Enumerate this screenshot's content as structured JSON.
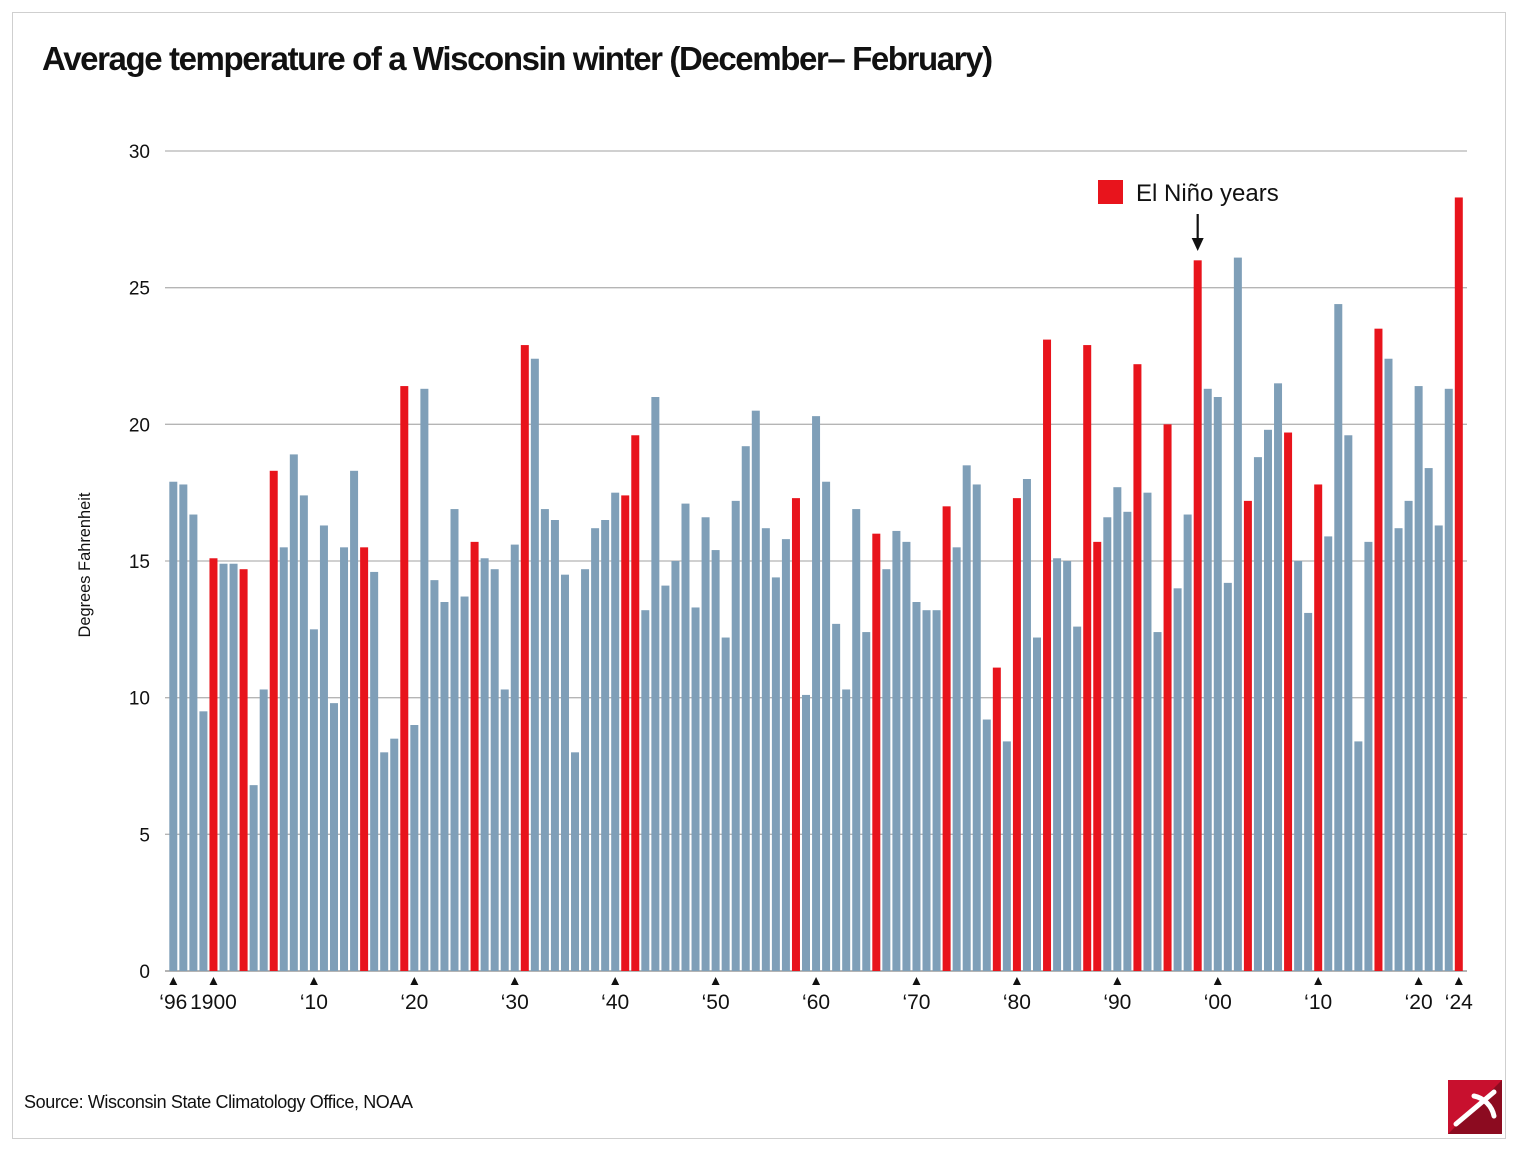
{
  "title": "Average temperature of a Wisconsin winter (December– February)",
  "source": "Source: Wisconsin State Climatology Office, NOAA",
  "colors": {
    "normal": "#7f9fb8",
    "el_nino": "#e8141c",
    "grid": "#b5b5b5",
    "text": "#111111"
  },
  "chart_data": {
    "type": "bar",
    "title": "Average temperature of a Wisconsin winter (December– February)",
    "ylabel": "Degrees Fahrenheit",
    "ylim": [
      0,
      30
    ],
    "yticks": [
      0,
      5,
      10,
      15,
      20,
      25,
      30
    ],
    "grid": true,
    "legend": {
      "position": "top-right",
      "label": "El Niño years",
      "color": "#e8141c"
    },
    "annotation": {
      "type": "arrow",
      "points_to": 1998
    },
    "first_year": 1896,
    "xtick_labels": [
      {
        "year": 1896,
        "label": "‘96"
      },
      {
        "year": 1900,
        "label": "1900"
      },
      {
        "year": 1910,
        "label": "‘10"
      },
      {
        "year": 1920,
        "label": "‘20"
      },
      {
        "year": 1930,
        "label": "‘30"
      },
      {
        "year": 1940,
        "label": "‘40"
      },
      {
        "year": 1950,
        "label": "‘50"
      },
      {
        "year": 1960,
        "label": "‘60"
      },
      {
        "year": 1970,
        "label": "‘70"
      },
      {
        "year": 1980,
        "label": "‘80"
      },
      {
        "year": 1990,
        "label": "‘90"
      },
      {
        "year": 2000,
        "label": "‘00"
      },
      {
        "year": 2010,
        "label": "‘10"
      },
      {
        "year": 2020,
        "label": "‘20"
      },
      {
        "year": 2024,
        "label": "‘24"
      }
    ],
    "values": [
      17.9,
      17.8,
      16.7,
      9.5,
      15.1,
      14.9,
      14.9,
      14.7,
      6.8,
      10.3,
      18.3,
      15.5,
      18.9,
      17.4,
      12.5,
      16.3,
      9.8,
      15.5,
      18.3,
      15.5,
      14.6,
      8.0,
      8.5,
      21.4,
      9.0,
      21.3,
      14.3,
      13.5,
      16.9,
      13.7,
      15.7,
      15.1,
      14.7,
      10.3,
      15.6,
      22.9,
      22.4,
      16.9,
      16.5,
      14.5,
      8.0,
      14.7,
      16.2,
      16.5,
      17.5,
      17.4,
      19.6,
      13.2,
      21.0,
      14.1,
      15.0,
      17.1,
      13.3,
      16.6,
      15.4,
      12.2,
      17.2,
      19.2,
      20.5,
      16.2,
      14.4,
      15.8,
      17.3,
      10.1,
      20.3,
      17.9,
      12.7,
      10.3,
      16.9,
      12.4,
      16.0,
      14.7,
      16.1,
      15.7,
      13.5,
      13.2,
      13.2,
      17.0,
      15.5,
      18.5,
      17.8,
      9.2,
      11.1,
      8.4,
      17.3,
      18.0,
      12.2,
      23.1,
      15.1,
      15.0,
      12.6,
      22.9,
      15.7,
      16.6,
      17.7,
      16.8,
      22.2,
      17.5,
      12.4,
      20.0,
      14.0,
      16.7,
      26.0,
      21.3,
      21.0,
      14.2,
      26.1,
      17.2,
      18.8,
      19.8,
      21.5,
      19.7,
      15.0,
      13.1,
      17.8,
      15.9,
      24.4,
      19.6,
      8.4,
      15.7,
      23.5,
      22.4,
      16.2,
      17.2,
      21.4,
      18.4,
      16.3,
      21.3,
      28.3
    ],
    "el_nino_years": [
      1900,
      1903,
      1906,
      1915,
      1919,
      1926,
      1931,
      1941,
      1942,
      1958,
      1966,
      1973,
      1978,
      1980,
      1983,
      1987,
      1988,
      1992,
      1995,
      1998,
      2003,
      2007,
      2010,
      2016,
      2024
    ]
  }
}
